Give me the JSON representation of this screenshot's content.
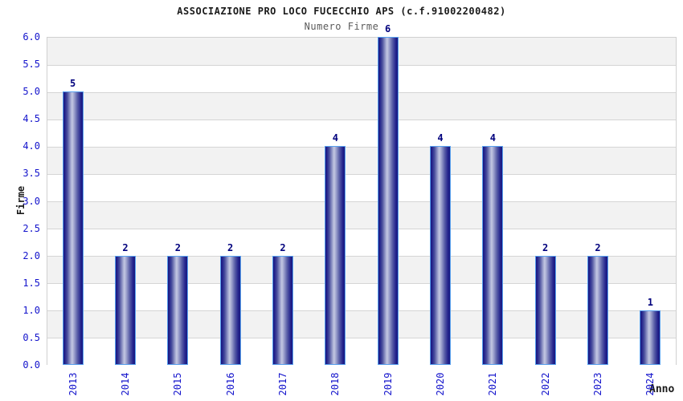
{
  "header": {
    "title": "ASSOCIAZIONE PRO LOCO FUCECCHIO APS (c.f.91002200482)",
    "subtitle": "Numero Firme"
  },
  "chart_data": {
    "type": "bar",
    "title": "ASSOCIAZIONE PRO LOCO FUCECCHIO APS (c.f.91002200482)",
    "subtitle": "Numero Firme",
    "categories": [
      "2013",
      "2014",
      "2015",
      "2016",
      "2017",
      "2018",
      "2019",
      "2020",
      "2021",
      "2022",
      "2023",
      "2024"
    ],
    "values": [
      5,
      2,
      2,
      2,
      2,
      4,
      6,
      4,
      4,
      2,
      2,
      1
    ],
    "xlabel": "Anno",
    "ylabel": "Firme",
    "ylim": [
      0,
      6
    ],
    "ytick_step": 0.5,
    "ytick_decimals": 1,
    "grid": true,
    "legend_position": "none",
    "band_colors": [
      "#f2f2f2",
      "#ffffff"
    ],
    "colors": {
      "tick_label": "#1414cc",
      "value_label": "#00007d",
      "gridline": "#d5d5d5",
      "bar_dark": "#181880",
      "bar_light": "#c4c8e2",
      "bar_border": "#58a0ee",
      "title": "#1a1a1a",
      "subtitle": "#5a5a5a"
    }
  }
}
